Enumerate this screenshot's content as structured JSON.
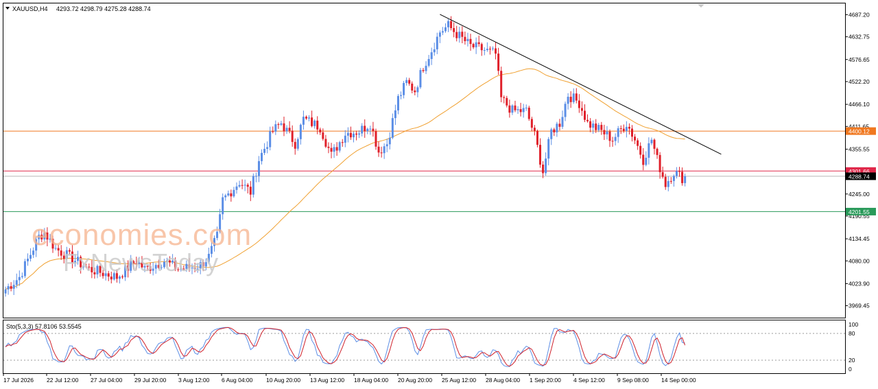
{
  "header": {
    "symbol": "XAUUSD,H4",
    "ohlc": "4293.72 4298.79 4275.28 4288.74"
  },
  "watermark": {
    "brand_top": "economies.com",
    "brand_bottom": "FxNewsToday"
  },
  "chart_data": {
    "type": "candlestick",
    "symbol": "XAUUSD",
    "timeframe": "H4",
    "ylim": [
      3940,
      4715
    ],
    "y_ticks": [
      "4687.20",
      "4632.75",
      "4576.65",
      "4522.20",
      "4466.10",
      "4411.65",
      "4355.55",
      "4301.10",
      "4245.00",
      "4190.55",
      "4134.45",
      "4080.00",
      "4023.90",
      "3969.45"
    ],
    "x_labels": [
      "17 Jul 2026",
      "22 Jul 12:00",
      "27 Jul 04:00",
      "29 Jul 20:00",
      "3 Aug 12:00",
      "6 Aug 04:00",
      "10 Aug 20:00",
      "13 Aug 12:00",
      "18 Aug 04:00",
      "20 Aug 20:00",
      "25 Aug 12:00",
      "28 Aug 04:00",
      "1 Sep 20:00",
      "4 Sep 12:00",
      "9 Sep 08:00",
      "14 Sep 00:00"
    ],
    "price_path": [
      [
        0,
        4010
      ],
      [
        5,
        4040
      ],
      [
        12,
        4140
      ],
      [
        14,
        4150
      ],
      [
        18,
        4110
      ],
      [
        23,
        4090
      ],
      [
        30,
        4060
      ],
      [
        40,
        4040
      ],
      [
        47,
        4080
      ],
      [
        50,
        4060
      ],
      [
        57,
        4080
      ],
      [
        62,
        4060
      ],
      [
        67,
        4065
      ],
      [
        70,
        4070
      ],
      [
        73,
        4090
      ],
      [
        76,
        4140
      ],
      [
        78,
        4230
      ],
      [
        84,
        4275
      ],
      [
        88,
        4250
      ],
      [
        91,
        4330
      ],
      [
        96,
        4400
      ],
      [
        99,
        4420
      ],
      [
        104,
        4370
      ],
      [
        107,
        4430
      ],
      [
        113,
        4410
      ],
      [
        117,
        4340
      ],
      [
        122,
        4395
      ],
      [
        127,
        4400
      ],
      [
        131,
        4420
      ],
      [
        134,
        4350
      ],
      [
        137,
        4370
      ],
      [
        141,
        4480
      ],
      [
        144,
        4520
      ],
      [
        147,
        4500
      ],
      [
        150,
        4560
      ],
      [
        153,
        4600
      ],
      [
        156,
        4645
      ],
      [
        159,
        4660
      ],
      [
        162,
        4640
      ],
      [
        167,
        4610
      ],
      [
        172,
        4600
      ],
      [
        176,
        4590
      ],
      [
        178,
        4480
      ],
      [
        182,
        4450
      ],
      [
        187,
        4450
      ],
      [
        190,
        4390
      ],
      [
        193,
        4300
      ],
      [
        196,
        4400
      ],
      [
        199,
        4420
      ],
      [
        202,
        4490
      ],
      [
        206,
        4470
      ],
      [
        209,
        4420
      ],
      [
        214,
        4400
      ],
      [
        218,
        4380
      ],
      [
        223,
        4420
      ],
      [
        226,
        4380
      ],
      [
        229,
        4330
      ],
      [
        232,
        4380
      ],
      [
        234,
        4330
      ],
      [
        237,
        4270
      ],
      [
        240,
        4300
      ],
      [
        244,
        4280
      ]
    ],
    "last_price": 4288.74,
    "horizontal_lines": [
      {
        "price": 4400.12,
        "label": "4400.12",
        "color": "#f07820"
      },
      {
        "price": 4301.66,
        "label": "4301.66",
        "color": "#e0284a"
      },
      {
        "price": 4288.74,
        "label": "4288.74",
        "color": "#000000"
      },
      {
        "price": 4201.55,
        "label": "4201.55",
        "color": "#2a9a5a"
      }
    ],
    "trendline": {
      "from": [
        156,
        4688
      ],
      "to": [
        257,
        4343
      ],
      "color": "#000000"
    },
    "moving_average": {
      "color": "#f0a030",
      "period": 50
    },
    "indicator": {
      "name": "Sto(5,3,3)",
      "label": "Sto(5,3,3) 57.8106 53.5545",
      "main": 57.8106,
      "signal": 53.5545,
      "levels": [
        80,
        20
      ],
      "axis_labels": [
        "100",
        "80",
        "20",
        "0"
      ],
      "main_color": "#5b8ee6",
      "signal_color": "#d0202a"
    },
    "colors": {
      "bull": "#5b8ee6",
      "bear": "#e0202a"
    }
  }
}
